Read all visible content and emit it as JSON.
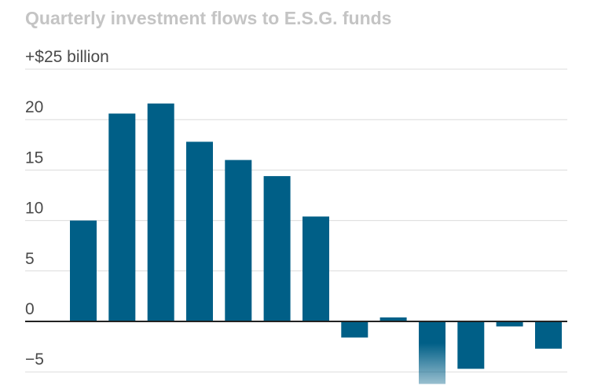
{
  "chart_data": {
    "type": "bar",
    "title": "Quarterly investment flows to E.S.G. funds",
    "xlabel": "",
    "ylabel": "",
    "y_ticks": [
      {
        "value": 25,
        "label": "+$25 billion"
      },
      {
        "value": 20,
        "label": "20"
      },
      {
        "value": 15,
        "label": "15"
      },
      {
        "value": 10,
        "label": "10"
      },
      {
        "value": 5,
        "label": "5"
      },
      {
        "value": 0,
        "label": "0"
      },
      {
        "value": -5,
        "label": "−5"
      }
    ],
    "ylim": [
      -6.2,
      25
    ],
    "grid": true,
    "categories": [
      "",
      "",
      "",
      "",
      "",
      "",
      "",
      "",
      "",
      "",
      "",
      "",
      ""
    ],
    "values": [
      10.0,
      20.6,
      21.6,
      17.8,
      16.0,
      14.4,
      10.4,
      -1.6,
      0.4,
      -6.2,
      -4.7,
      -0.5,
      -2.7
    ],
    "colors": {
      "bar": "#005f87",
      "fade_end": "#ffffff",
      "grid": "#dcdcdc",
      "zero_line": "#222222"
    }
  }
}
